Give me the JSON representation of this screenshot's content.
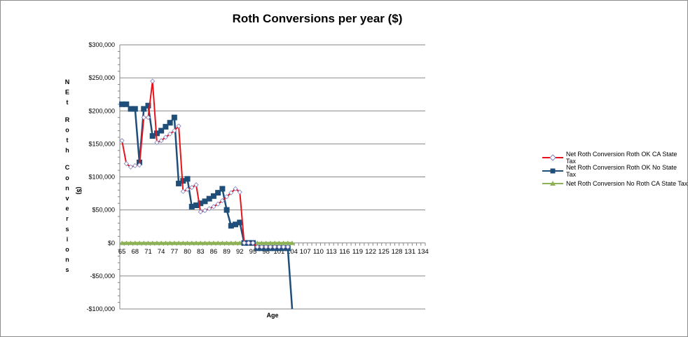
{
  "chart_data": {
    "type": "line",
    "title": "Roth Conversions per year ($)",
    "xlabel": "Age",
    "ylabel": "NEt Roth Conversions ($)",
    "ylim": [
      -100000,
      300000
    ],
    "y_ticks": [
      "$300,000",
      "$250,000",
      "$200,000",
      "$150,000",
      "$100,000",
      "$50,000",
      "$0",
      "-$50,000",
      "-$100,000"
    ],
    "x_tick_labels": [
      "65",
      "68",
      "71",
      "74",
      "77",
      "80",
      "83",
      "86",
      "89",
      "92",
      "95",
      "98",
      "101",
      "104",
      "107",
      "110",
      "113",
      "116",
      "119",
      "122",
      "125",
      "128",
      "131",
      "134"
    ],
    "x_start": 65,
    "x_end": 134,
    "grid": true,
    "legend_position": "right",
    "series": [
      {
        "name": "Net Roth Conversion Roth OK CA State Tax",
        "color": "#e8141c",
        "marker": "diamond",
        "x": [
          65,
          66,
          67,
          68,
          69,
          70,
          71,
          72,
          73,
          74,
          75,
          76,
          77,
          78,
          79,
          80,
          81,
          82,
          83,
          84,
          85,
          86,
          87,
          88,
          89,
          90,
          91,
          92,
          93,
          94,
          95,
          96,
          97,
          98,
          99,
          100,
          101,
          102,
          103
        ],
        "values": [
          155000,
          120000,
          115000,
          117000,
          118000,
          190000,
          190000,
          245000,
          152000,
          155000,
          160000,
          165000,
          170000,
          177000,
          78000,
          81000,
          84000,
          88000,
          47000,
          49000,
          52000,
          55000,
          59000,
          64000,
          70000,
          76000,
          82000,
          77000,
          0,
          0,
          0,
          -6000,
          -6000,
          -6000,
          -6000,
          -6000,
          -6000,
          -6000,
          -6000
        ]
      },
      {
        "name": "Net Roth Conversion Roth OK No State Tax",
        "color": "#1f4e79",
        "marker": "square",
        "x": [
          65,
          66,
          67,
          68,
          69,
          70,
          71,
          72,
          73,
          74,
          75,
          76,
          77,
          78,
          79,
          80,
          81,
          82,
          83,
          84,
          85,
          86,
          87,
          88,
          89,
          90,
          91,
          92,
          93,
          94,
          95,
          96,
          97,
          98,
          99,
          100,
          101,
          102,
          103,
          104
        ],
        "values": [
          210000,
          210000,
          203000,
          203000,
          122000,
          203000,
          208000,
          162000,
          166000,
          170000,
          176000,
          182000,
          190000,
          90000,
          94000,
          97000,
          55000,
          57000,
          60000,
          63000,
          67000,
          71000,
          76000,
          82000,
          50000,
          26000,
          28000,
          31000,
          0,
          0,
          0,
          -8000,
          -8000,
          -8000,
          -8000,
          -8000,
          -8000,
          -8000,
          -8000,
          -110000
        ]
      },
      {
        "name": "Net Roth Conversion No Roth CA State Tax",
        "color": "#8db255",
        "marker": "triangle",
        "x_range": [
          65,
          104
        ],
        "constant_value": 0
      }
    ]
  },
  "legend": {
    "items": [
      {
        "label": "Net Roth Conversion Roth OK CA State Tax",
        "color": "#e8141c"
      },
      {
        "label": "Net Roth Conversion Roth OK No State Tax",
        "color": "#1f4e79"
      },
      {
        "label": "Net Roth Conversion No Roth CA State Tax",
        "color": "#8db255"
      }
    ]
  }
}
